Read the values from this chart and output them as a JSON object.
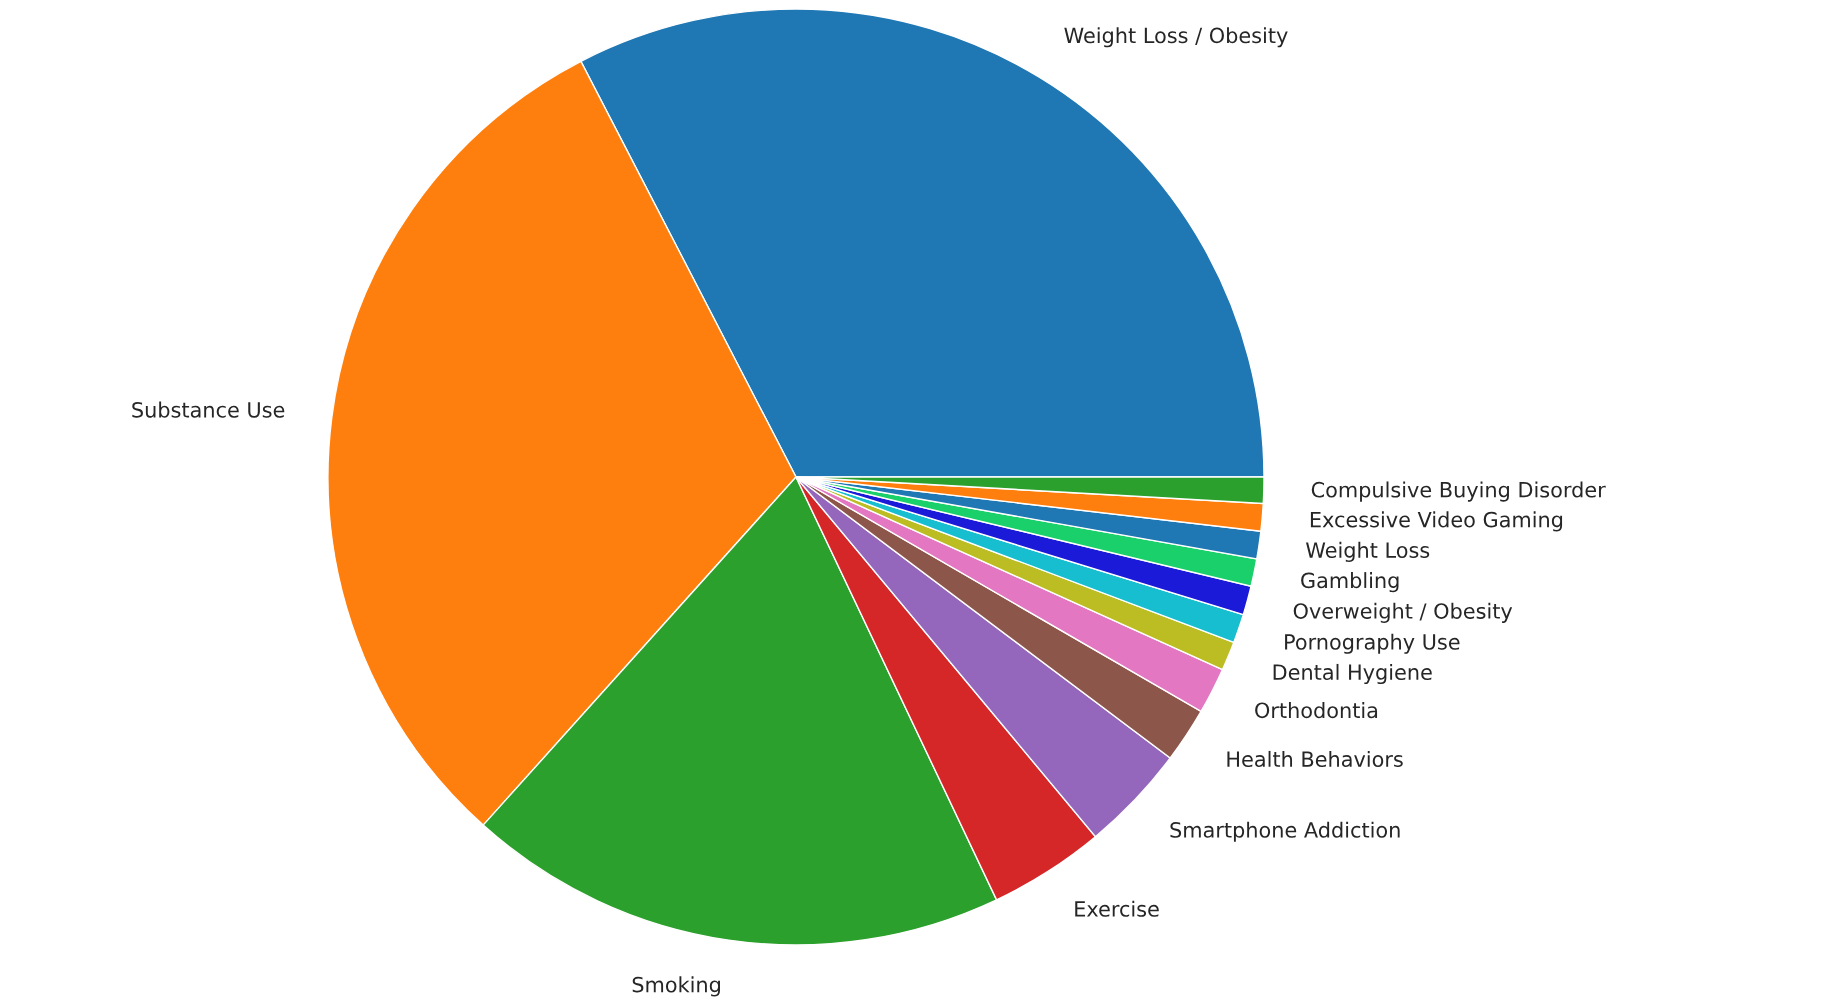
{
  "chart_data": {
    "type": "pie",
    "categories": [
      "Weight Loss / Obesity",
      "Substance Use",
      "Smoking",
      "Exercise",
      "Smartphone Addiction",
      "Health Behaviors",
      "Orthodontia",
      "Dental Hygiene",
      "Pornography Use",
      "Overweight / Obesity",
      "Gambling",
      "Weight Loss",
      "Excessive Video Gaming",
      "Compulsive Buying Disorder"
    ],
    "values": [
      32.6,
      30.75,
      18.7,
      4.0,
      3.7,
      1.9,
      1.6,
      1.0,
      1.0,
      1.0,
      0.95,
      0.95,
      0.95,
      0.9
    ],
    "colors": [
      "#1f77b4",
      "#ff7f0e",
      "#2ca02c",
      "#d62728",
      "#9467bd",
      "#8c564b",
      "#e377c2",
      "#bcbd22",
      "#17becf",
      "#1a1ad8",
      "#1ad06a",
      "#1f77b4",
      "#ff7f0e",
      "#2ca02c"
    ]
  }
}
